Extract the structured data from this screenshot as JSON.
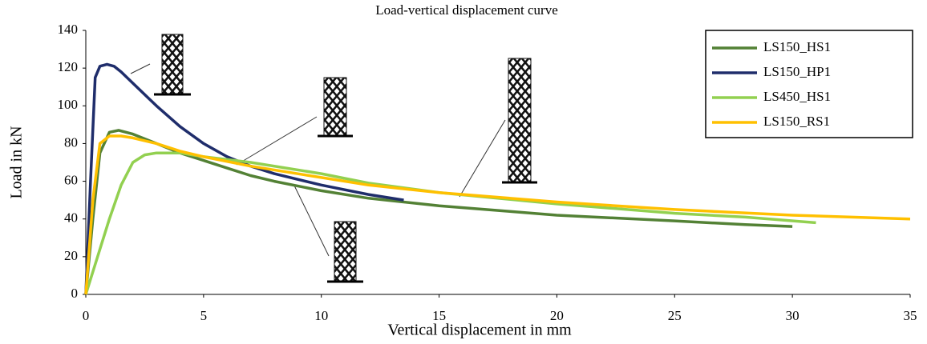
{
  "chart_data": {
    "type": "line",
    "title": "Load-vertical displacement curve",
    "x_label": "Vertical displacement in mm",
    "y_label": "Load in kN",
    "xlim": [
      0,
      35
    ],
    "xticks": [
      0,
      5,
      10,
      15,
      20,
      25,
      30,
      35
    ],
    "ylim": [
      0,
      140
    ],
    "yticks": [
      0,
      20,
      40,
      60,
      80,
      100,
      120,
      140
    ],
    "grid": false,
    "legend": "upper right",
    "series": [
      {
        "name": "LS150_HS1",
        "color": "#538135",
        "x": [
          0,
          0.3,
          0.6,
          1,
          1.4,
          2,
          3,
          4,
          5,
          6,
          7,
          8,
          10,
          12,
          15,
          18,
          20,
          25,
          28,
          30
        ],
        "values": [
          0,
          40,
          75,
          86,
          87,
          85,
          80,
          75,
          71,
          67,
          63,
          60,
          55,
          51,
          47,
          44,
          42,
          39,
          37,
          36
        ]
      },
      {
        "name": "LS150_HP1",
        "color": "#1f2d6b",
        "x": [
          0,
          0.2,
          0.4,
          0.6,
          0.9,
          1.2,
          1.5,
          2,
          3,
          4,
          5,
          6,
          7,
          8,
          10,
          12,
          13.5
        ],
        "values": [
          0,
          60,
          115,
          121,
          122,
          121,
          118,
          112,
          100,
          89,
          80,
          73,
          68,
          64,
          58,
          53,
          50
        ]
      },
      {
        "name": "LS450_HS1",
        "color": "#92d050",
        "x": [
          0,
          0.5,
          1,
          1.5,
          2,
          2.5,
          3,
          4,
          5,
          7,
          10,
          12,
          15,
          20,
          25,
          28,
          31
        ],
        "values": [
          0,
          20,
          40,
          58,
          70,
          74,
          75,
          75,
          73,
          70,
          64,
          59,
          54,
          48,
          43,
          41,
          38
        ]
      },
      {
        "name": "LS150_RS1",
        "color": "#ffc000",
        "x": [
          0,
          0.3,
          0.6,
          1,
          1.5,
          2,
          3,
          4,
          5,
          7,
          10,
          12,
          15,
          20,
          25,
          30,
          35
        ],
        "values": [
          0,
          50,
          80,
          84,
          84,
          83,
          80,
          76,
          73,
          68,
          62,
          58,
          54,
          49,
          45,
          42,
          40
        ]
      }
    ]
  }
}
